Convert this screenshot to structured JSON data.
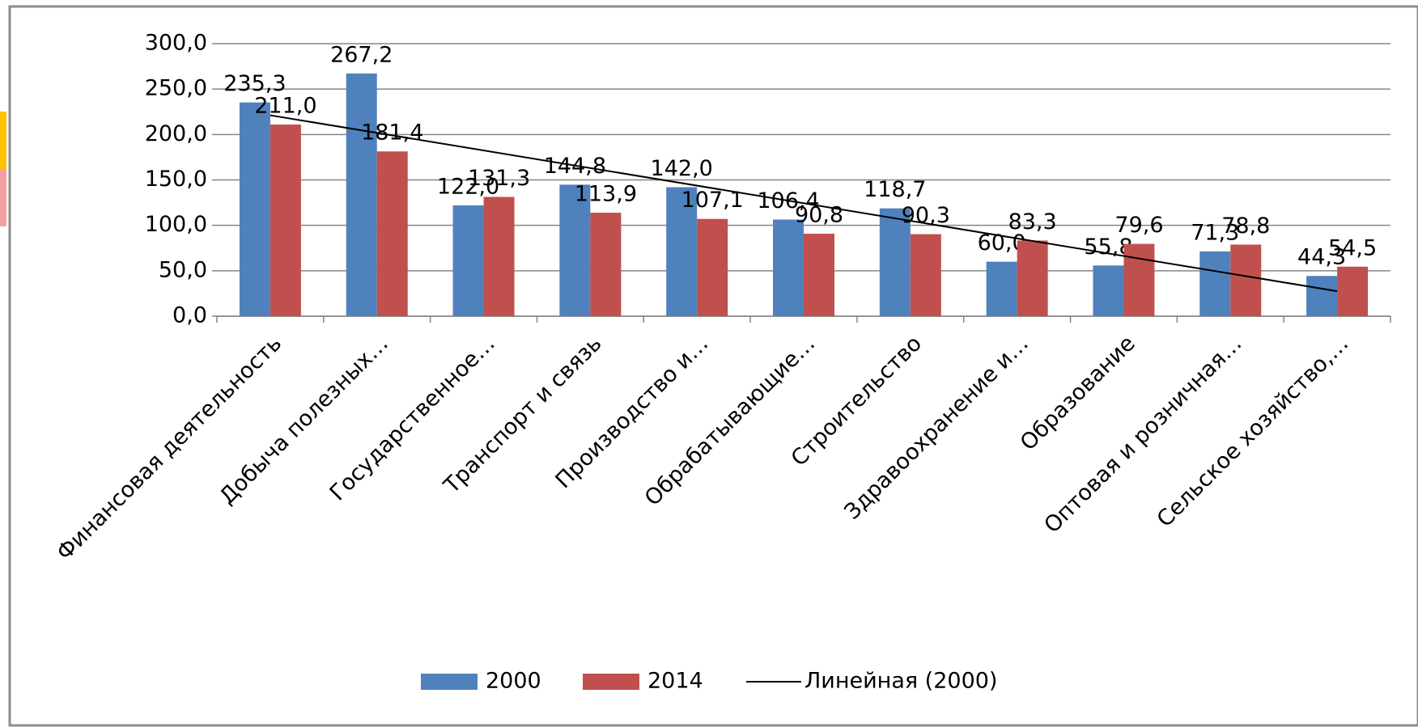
{
  "chart_data": {
    "type": "bar",
    "categories": [
      "Финансовая деятельность",
      "Добыча полезных…",
      "Государственное…",
      "Транспорт и связь",
      "Производство и…",
      "Обрабатывающие…",
      "Строительство",
      "Здравоохранение и…",
      "Образование",
      "Оптовая и розничная…",
      "Сельское хозяйство,…"
    ],
    "series": [
      {
        "name": "2000",
        "color": "#4f81bd",
        "values": [
          235.3,
          267.2,
          122.0,
          144.8,
          142.0,
          106.4,
          118.7,
          60.0,
          55.8,
          71.3,
          44.3
        ],
        "value_labels": [
          "235,3",
          "267,2",
          "122,0",
          "144,8",
          "142,0",
          "106,4",
          "118,7",
          "60,0",
          "55,8",
          "71,3",
          "44,3"
        ]
      },
      {
        "name": "2014",
        "color": "#c0504d",
        "values": [
          211.0,
          181.4,
          131.3,
          113.9,
          107.1,
          90.8,
          90.3,
          83.3,
          79.6,
          78.8,
          54.5
        ],
        "value_labels": [
          "211,0",
          "181,4",
          "131,3",
          "113,9",
          "107,1",
          "90,8",
          "90,3",
          "83,3",
          "79,6",
          "78,8",
          "54,5"
        ]
      }
    ],
    "trendline": {
      "name": "Линейная (2000)",
      "series": 0,
      "color": "#000000"
    },
    "ylim": [
      0,
      300
    ],
    "yticks": [
      {
        "value": 0,
        "label": "0,0"
      },
      {
        "value": 50,
        "label": "50,0"
      },
      {
        "value": 100,
        "label": "100,0"
      },
      {
        "value": 150,
        "label": "150,0"
      },
      {
        "value": 200,
        "label": "200,0"
      },
      {
        "value": 250,
        "label": "250,0"
      },
      {
        "value": 300,
        "label": "300,0"
      }
    ],
    "grid": true,
    "legend": "bottom"
  }
}
